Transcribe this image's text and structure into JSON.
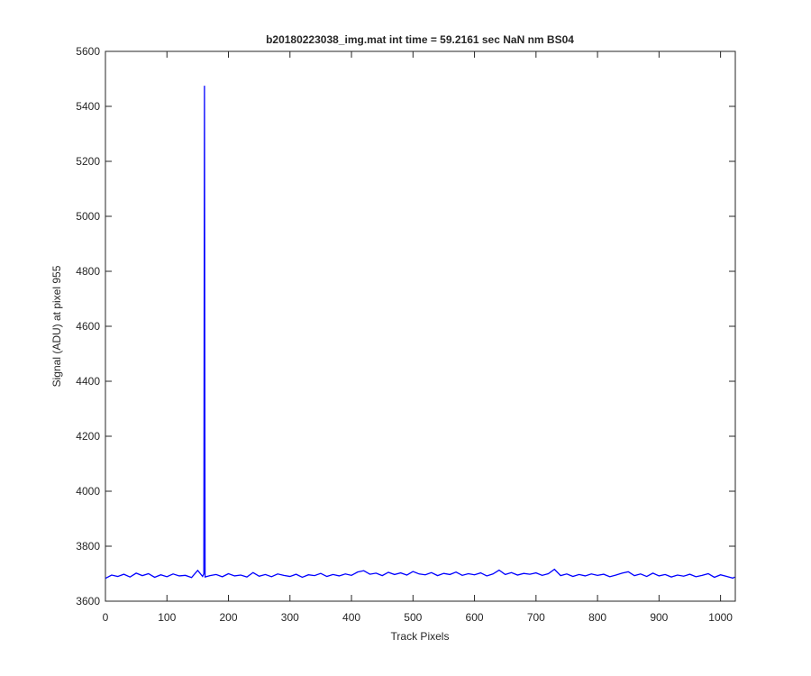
{
  "chart_data": {
    "type": "line",
    "title": "b20180223038_img.mat int time = 59.2161 sec  NaN nm BS04",
    "x_label": "Track Pixels",
    "y_label": "Signal (ADU) at pixel 955",
    "x": [
      0,
      10,
      20,
      30,
      40,
      50,
      60,
      70,
      80,
      90,
      100,
      110,
      120,
      130,
      140,
      150,
      158,
      160,
      161,
      162,
      170,
      180,
      190,
      200,
      210,
      220,
      230,
      240,
      250,
      260,
      270,
      280,
      290,
      300,
      310,
      320,
      330,
      340,
      350,
      360,
      370,
      380,
      390,
      400,
      410,
      420,
      430,
      440,
      450,
      460,
      470,
      480,
      490,
      500,
      510,
      520,
      530,
      540,
      550,
      560,
      570,
      580,
      590,
      600,
      610,
      620,
      630,
      640,
      650,
      660,
      670,
      680,
      690,
      700,
      710,
      720,
      730,
      740,
      750,
      760,
      770,
      780,
      790,
      800,
      810,
      820,
      830,
      840,
      850,
      860,
      870,
      880,
      890,
      900,
      910,
      920,
      930,
      940,
      950,
      960,
      970,
      980,
      990,
      1000,
      1010,
      1020,
      1023
    ],
    "series": [
      {
        "color": "#0000ff",
        "values": [
          3683,
          3695,
          3690,
          3698,
          3688,
          3702,
          3693,
          3700,
          3687,
          3696,
          3689,
          3699,
          3692,
          3694,
          3686,
          3712,
          3690,
          3700,
          5475,
          3688,
          3693,
          3697,
          3689,
          3700,
          3692,
          3695,
          3688,
          3704,
          3691,
          3697,
          3689,
          3699,
          3694,
          3690,
          3698,
          3687,
          3696,
          3693,
          3701,
          3690,
          3697,
          3692,
          3699,
          3694,
          3706,
          3711,
          3698,
          3702,
          3693,
          3705,
          3697,
          3703,
          3695,
          3708,
          3699,
          3696,
          3704,
          3693,
          3701,
          3697,
          3706,
          3694,
          3700,
          3696,
          3703,
          3692,
          3699,
          3713,
          3697,
          3704,
          3695,
          3701,
          3698,
          3703,
          3694,
          3700,
          3716,
          3693,
          3699,
          3690,
          3697,
          3692,
          3699,
          3694,
          3698,
          3689,
          3695,
          3702,
          3707,
          3693,
          3699,
          3690,
          3702,
          3692,
          3697,
          3688,
          3695,
          3691,
          3698,
          3689,
          3694,
          3700,
          3687,
          3696,
          3690,
          3684,
          3688
        ]
      }
    ],
    "xlim": [
      0,
      1024
    ],
    "ylim": [
      3600,
      5600
    ],
    "xticks": [
      0,
      100,
      200,
      300,
      400,
      500,
      600,
      700,
      800,
      900,
      1000
    ],
    "yticks": [
      3600,
      3800,
      4000,
      4200,
      4400,
      4600,
      4800,
      5000,
      5200,
      5400,
      5600
    ]
  }
}
